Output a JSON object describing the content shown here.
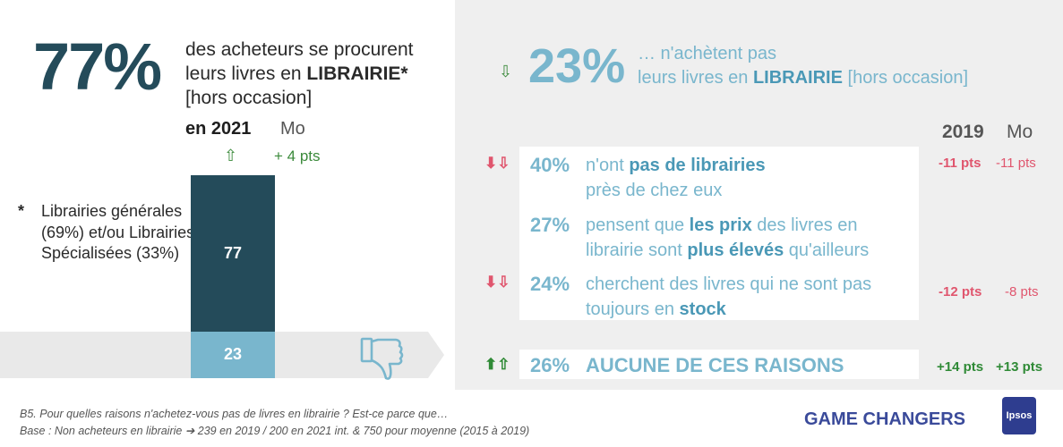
{
  "left": {
    "big_percent": "77%",
    "headline": {
      "line1": "des acheteurs se procurent",
      "line2a": "leurs livres en",
      "line2b": "LIBRAIRIE*",
      "line3": "[hors occasion]"
    },
    "year_label": "en 2021",
    "mo_label": "Mo",
    "delta": "+ 4 pts",
    "footnote": {
      "star": "*",
      "text": "Librairies générales (69%) et/ou Librairies Spécialisées (33%)"
    }
  },
  "chart_data": {
    "type": "bar",
    "stacked": true,
    "categories": [
      "2021"
    ],
    "series": [
      {
        "values": [
          77
        ],
        "color": "#244b5a"
      },
      {
        "values": [
          23
        ],
        "color": "#79b6cd"
      }
    ],
    "labels": [
      "77",
      "23"
    ],
    "ylim": [
      0,
      100
    ]
  },
  "right": {
    "big_percent": "23%",
    "headline": {
      "line1": "… n'achètent pas",
      "line2a": "leurs livres en",
      "line2b": "LIBRAIRIE",
      "line2c": "[hors occasion]"
    },
    "col_2019": "2019",
    "col_mo": "Mo",
    "reasons": [
      {
        "pct": "40%",
        "t1": "n'ont",
        "b1": "pas de librairies",
        "t2": "près de chez eux",
        "d2019": "-11 pts",
        "dmo": "-11 pts"
      },
      {
        "pct": "27%",
        "t1": "pensent que",
        "b1": "les prix",
        "t1b": "des livres en",
        "t2": "librairie sont",
        "b2": "plus élevés",
        "t2b": "qu'ailleurs"
      },
      {
        "pct": "24%",
        "t1": "cherchent des livres qui ne sont pas",
        "t2": "toujours en",
        "b2": "stock",
        "d2019": "-12 pts",
        "dmo": "-8 pts"
      }
    ],
    "none": {
      "pct": "26%",
      "label": "AUCUNE DE CES RAISONS",
      "d2019": "+14 pts",
      "dmo": "+13 pts"
    }
  },
  "footer": {
    "question": "B5. Pour quelles raisons n'achetez-vous pas de livres en librairie ? Est-ce parce que…",
    "base": "Base : Non acheteurs en librairie ➔ 239 en 2019 / 200 en 2021 int. & 750 pour moyenne (2015 à 2019)",
    "brand": "GAME CHANGERS",
    "logo": "Ipsos"
  },
  "icons": {
    "thumb": "thumbs-down-icon",
    "up_outline": "arrow-up-outline-icon",
    "down_outline": "arrow-down-outline-icon",
    "down_solid_red": "arrow-down-solid-icon",
    "up_solid_green": "arrow-up-solid-icon"
  },
  "colors": {
    "dark": "#244b5a",
    "light": "#79b6cd",
    "red": "#e0566e",
    "green": "#2f8a36",
    "panel": "#efefef"
  }
}
